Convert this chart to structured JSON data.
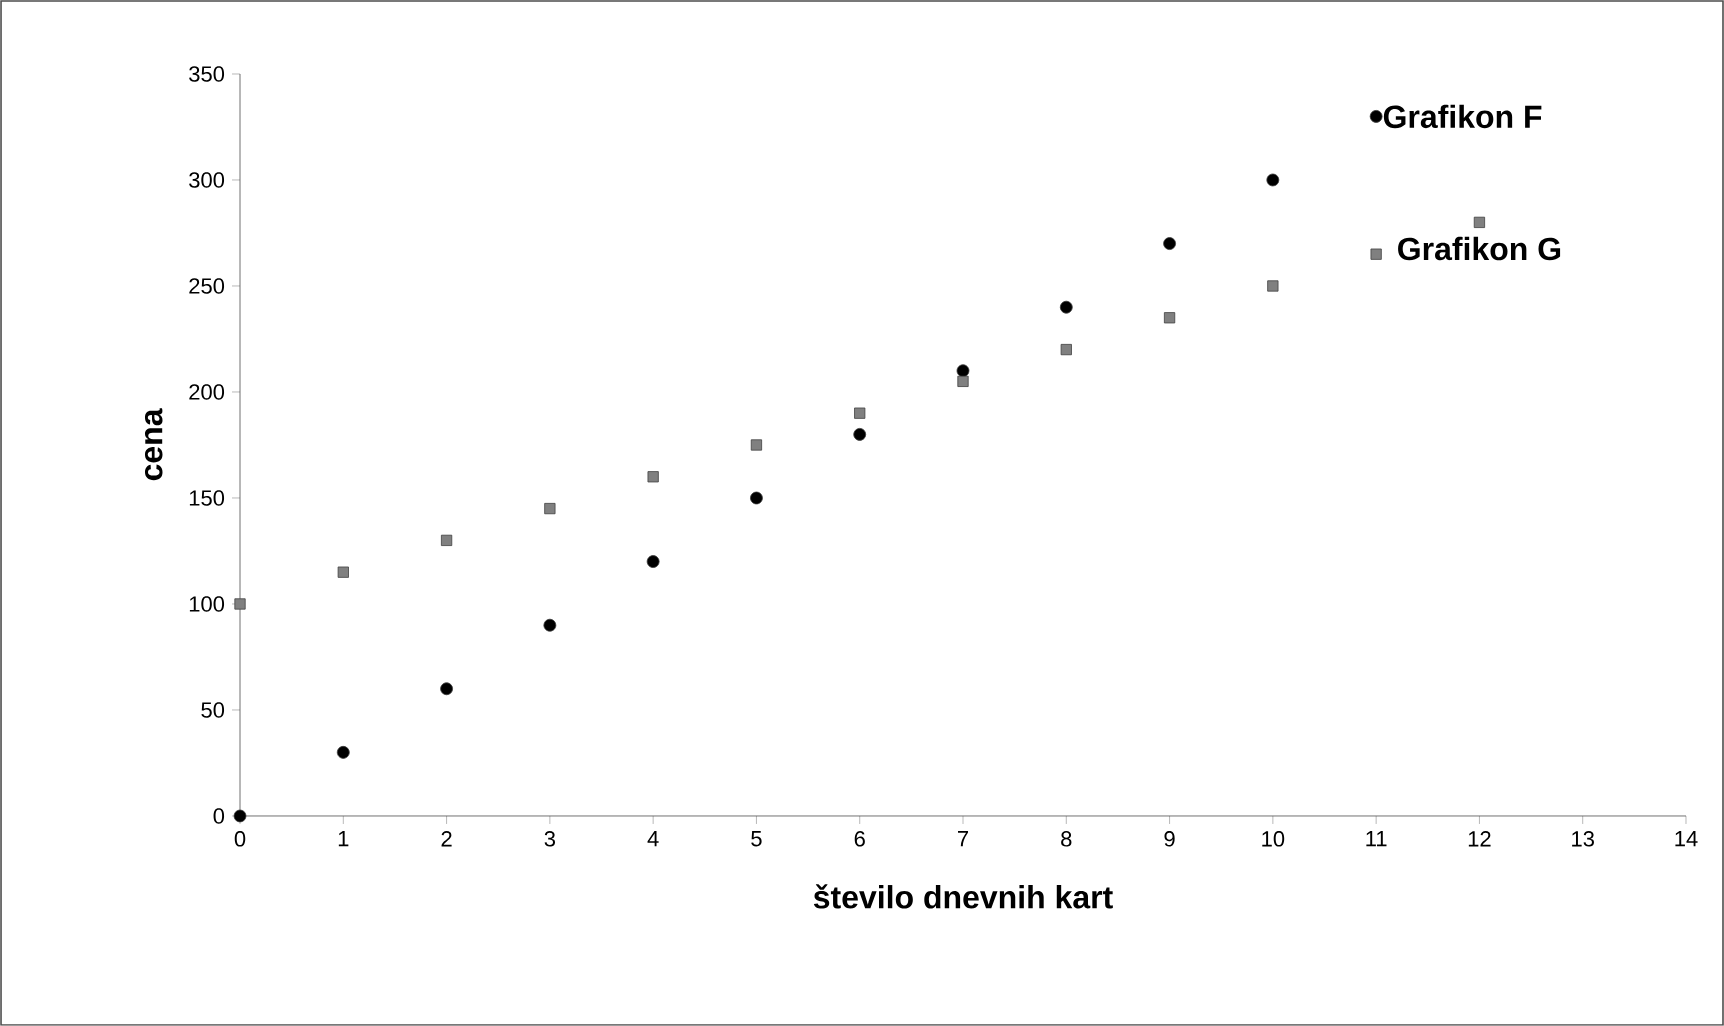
{
  "chart_data": {
    "type": "scatter",
    "xlabel": "število dnevnih kart",
    "ylabel": "cena",
    "xlim": [
      0,
      14
    ],
    "xticks": [
      0,
      1,
      2,
      3,
      4,
      5,
      6,
      7,
      8,
      9,
      10,
      11,
      12,
      13,
      14
    ],
    "ylim": [
      0,
      350
    ],
    "yticks": [
      0,
      50,
      100,
      150,
      200,
      250,
      300,
      350
    ],
    "grid": false,
    "series": [
      {
        "name": "Grafikon F",
        "color": "#000000",
        "marker": "circle",
        "x": [
          0,
          1,
          2,
          3,
          4,
          5,
          6,
          7,
          8,
          9,
          10,
          11
        ],
        "values": [
          0,
          30,
          60,
          90,
          120,
          150,
          180,
          210,
          240,
          270,
          300,
          330
        ]
      },
      {
        "name": "Grafikon G",
        "color": "#808080",
        "marker": "square",
        "x": [
          0,
          1,
          2,
          3,
          4,
          5,
          6,
          7,
          8,
          9,
          10,
          11,
          12
        ],
        "values": [
          100,
          115,
          130,
          145,
          160,
          175,
          190,
          205,
          220,
          235,
          250,
          265,
          280
        ]
      }
    ]
  }
}
